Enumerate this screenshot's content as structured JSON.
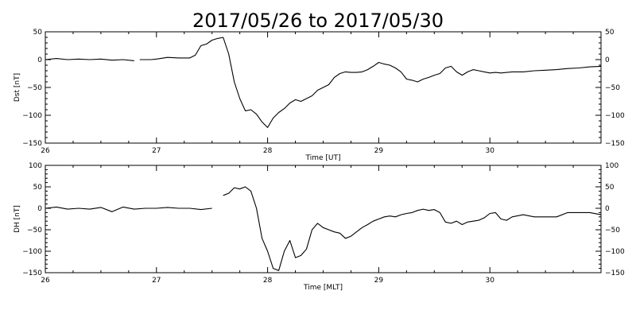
{
  "title": "2017/05/26 to 2017/05/30",
  "chart_data": [
    {
      "type": "line",
      "id": "dst",
      "ylabel": "Dst [nT]",
      "xlabel": "Time [UT]",
      "xlim": [
        26,
        31
      ],
      "ylim": [
        -150,
        50
      ],
      "xticks": [
        26,
        27,
        28,
        29,
        30
      ],
      "xtick_labels": [
        "26",
        "27",
        "28",
        "29",
        "30"
      ],
      "yticks": [
        -150,
        -100,
        -50,
        0,
        50
      ],
      "ytick_labels": [
        "−150",
        "−100",
        "−50",
        "0",
        "50"
      ],
      "grid": false,
      "segments": [
        {
          "x": [
            26.0,
            26.1,
            26.2,
            26.3,
            26.4,
            26.5,
            26.6,
            26.7,
            26.8
          ],
          "y": [
            0,
            2,
            0,
            1,
            0,
            1,
            -1,
            0,
            -2
          ]
        },
        {
          "x": [
            26.85,
            26.95,
            27.0,
            27.1,
            27.2,
            27.3,
            27.35,
            27.4,
            27.45,
            27.5,
            27.55,
            27.6,
            27.65,
            27.7,
            27.75,
            27.8,
            27.85,
            27.9,
            27.95,
            28.0,
            28.05,
            28.1,
            28.15,
            28.2,
            28.25,
            28.3,
            28.35,
            28.4,
            28.45,
            28.5,
            28.55,
            28.6,
            28.65,
            28.7,
            28.75,
            28.8,
            28.85,
            28.9,
            28.95,
            29.0,
            29.05,
            29.1,
            29.15,
            29.2,
            29.25,
            29.3,
            29.35,
            29.4,
            29.45,
            29.5,
            29.55,
            29.6,
            29.65,
            29.7,
            29.75,
            29.8,
            29.85,
            29.9,
            29.95,
            30.0,
            30.05,
            30.1,
            30.2,
            30.3,
            30.4,
            30.5,
            30.6,
            30.7,
            30.8,
            30.9,
            31.0
          ],
          "y": [
            0,
            0,
            1,
            4,
            3,
            3,
            8,
            25,
            28,
            35,
            38,
            40,
            10,
            -40,
            -70,
            -92,
            -90,
            -98,
            -112,
            -122,
            -105,
            -95,
            -88,
            -78,
            -72,
            -75,
            -70,
            -65,
            -55,
            -50,
            -45,
            -32,
            -25,
            -22,
            -23,
            -23,
            -22,
            -18,
            -12,
            -5,
            -8,
            -10,
            -15,
            -22,
            -35,
            -37,
            -40,
            -35,
            -32,
            -28,
            -25,
            -15,
            -12,
            -22,
            -28,
            -22,
            -18,
            -20,
            -22,
            -24,
            -23,
            -24,
            -22,
            -22,
            -20,
            -19,
            -18,
            -16,
            -15,
            -13,
            -12
          ]
        }
      ]
    },
    {
      "type": "line",
      "id": "dh",
      "ylabel": "DH [nT]",
      "xlabel": "Time [MLT]",
      "xlim": [
        26,
        31
      ],
      "ylim": [
        -150,
        100
      ],
      "xticks": [
        26,
        27,
        28,
        29,
        30
      ],
      "xtick_labels": [
        "26",
        "27",
        "28",
        "29",
        "30"
      ],
      "yticks": [
        -150,
        -100,
        -50,
        0,
        50,
        100
      ],
      "ytick_labels": [
        "−150",
        "−100",
        "−50",
        "0",
        "50",
        "100"
      ],
      "grid": false,
      "segments": [
        {
          "x": [
            26.0,
            26.1,
            26.2,
            26.3,
            26.4,
            26.5,
            26.6,
            26.7,
            26.8,
            26.9,
            27.0,
            27.1,
            27.2,
            27.3,
            27.4,
            27.5
          ],
          "y": [
            0,
            3,
            -2,
            0,
            -2,
            2,
            -8,
            3,
            -2,
            0,
            0,
            2,
            0,
            0,
            -3,
            0
          ]
        },
        {
          "x": [
            27.6,
            27.65,
            27.7,
            27.75,
            27.8,
            27.85,
            27.9,
            27.95,
            28.0,
            28.05,
            28.1,
            28.15,
            28.2,
            28.25,
            28.3,
            28.35,
            28.4,
            28.45,
            28.5,
            28.55,
            28.6,
            28.65,
            28.7,
            28.75,
            28.8,
            28.85,
            28.9,
            28.95,
            29.0,
            29.05,
            29.1,
            29.15,
            29.2,
            29.25,
            29.3,
            29.35,
            29.4,
            29.45,
            29.5,
            29.55,
            29.6,
            29.65,
            29.7,
            29.75,
            29.8,
            29.85,
            29.9,
            29.95,
            30.0,
            30.05,
            30.1,
            30.15,
            30.2,
            30.3,
            30.4,
            30.5,
            30.6,
            30.7,
            30.8,
            30.9,
            31.0
          ],
          "y": [
            30,
            35,
            48,
            45,
            50,
            40,
            0,
            -70,
            -100,
            -140,
            -145,
            -100,
            -75,
            -115,
            -110,
            -95,
            -50,
            -35,
            -45,
            -50,
            -55,
            -58,
            -70,
            -65,
            -55,
            -45,
            -38,
            -30,
            -25,
            -20,
            -18,
            -20,
            -15,
            -12,
            -10,
            -5,
            -2,
            -5,
            -3,
            -10,
            -32,
            -35,
            -30,
            -38,
            -32,
            -30,
            -28,
            -22,
            -12,
            -10,
            -25,
            -28,
            -20,
            -15,
            -20,
            -20,
            -20,
            -10,
            -10,
            -10,
            -15
          ]
        }
      ]
    }
  ]
}
